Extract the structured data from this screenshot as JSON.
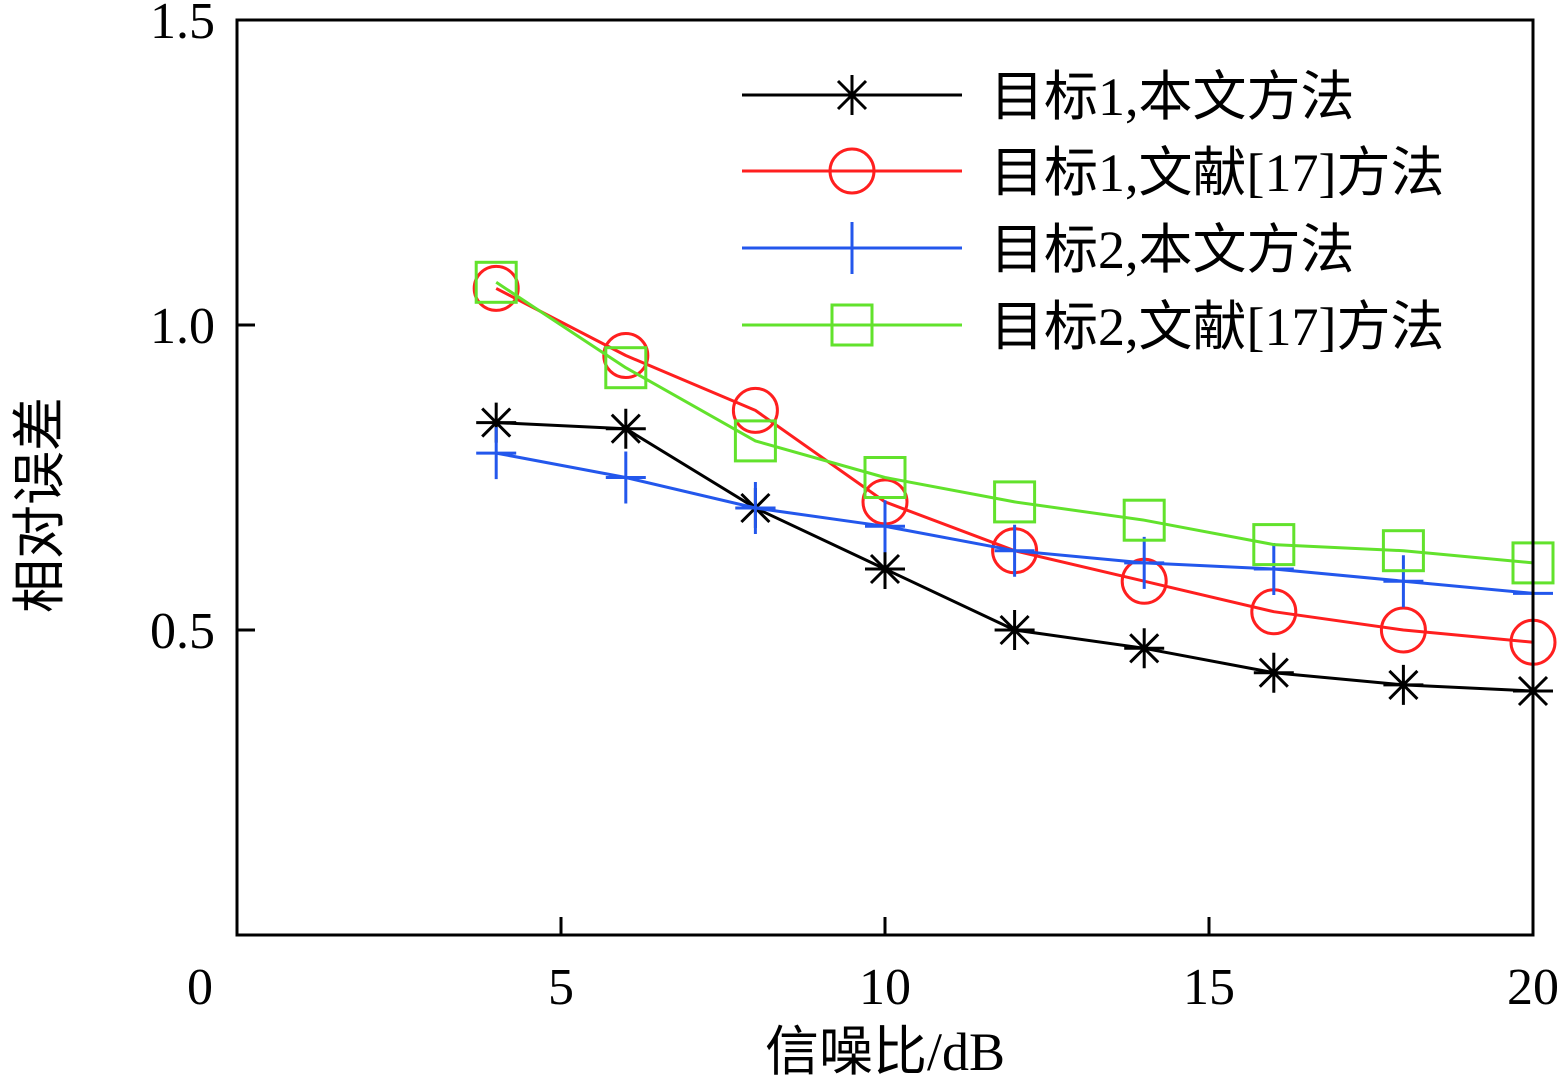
{
  "chart_data": {
    "type": "line",
    "xlabel": "信噪比/dB",
    "ylabel": "相对误差",
    "xlim": [
      0,
      20
    ],
    "ylim": [
      0,
      1.5
    ],
    "x_ticks": [
      0,
      5,
      10,
      15,
      20
    ],
    "x_tick_labels": [
      "0",
      "5",
      "10",
      "15",
      "20"
    ],
    "y_ticks": [
      0.5,
      1.0,
      1.5
    ],
    "y_tick_labels": [
      "0.5",
      "1.0",
      "1.5"
    ],
    "grid": false,
    "legend_position": "top-right",
    "x": [
      4,
      6,
      8,
      10,
      12,
      14,
      16,
      18,
      20
    ],
    "series": [
      {
        "name": "目标1,本文方法",
        "color": "#000000",
        "marker": "asterisk",
        "values": [
          0.84,
          0.83,
          0.7,
          0.6,
          0.5,
          0.47,
          0.43,
          0.41,
          0.4
        ]
      },
      {
        "name": "目标1,文献[17]方法",
        "color": "#ff1f1f",
        "marker": "circle",
        "values": [
          1.06,
          0.95,
          0.86,
          0.71,
          0.63,
          0.58,
          0.53,
          0.5,
          0.48
        ]
      },
      {
        "name": "目标2,本文方法",
        "color": "#2357ec",
        "marker": "plus",
        "values": [
          0.79,
          0.75,
          0.7,
          0.67,
          0.63,
          0.61,
          0.6,
          0.58,
          0.56
        ]
      },
      {
        "name": "目标2,文献[17]方法",
        "color": "#62e22c",
        "marker": "square",
        "values": [
          1.07,
          0.93,
          0.81,
          0.75,
          0.71,
          0.68,
          0.64,
          0.63,
          0.61
        ]
      }
    ]
  }
}
